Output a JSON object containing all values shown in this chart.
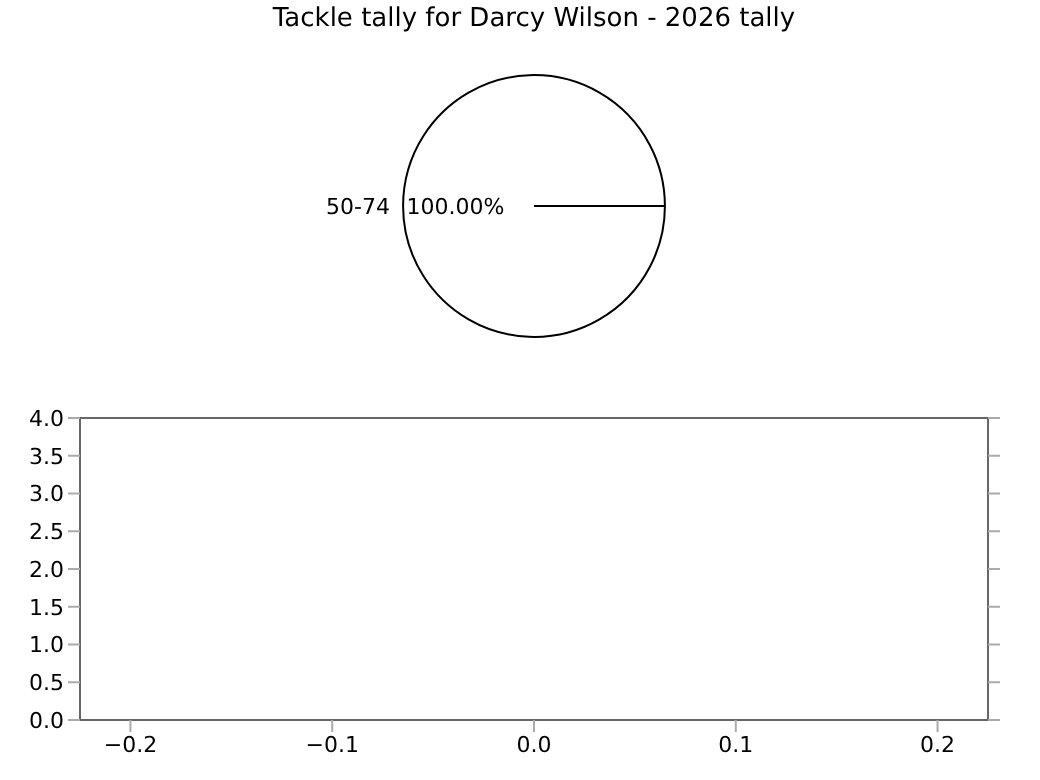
{
  "chart_data": [
    {
      "type": "pie",
      "title": "Tackle tally for Darcy Wilson - 2026 tally",
      "categories": [
        "50-74"
      ],
      "values": [
        100
      ],
      "colors": [
        "#ffffff"
      ],
      "value_labels": [
        "100.00%"
      ]
    },
    {
      "type": "scatter",
      "xlim": [
        -0.225,
        0.225
      ],
      "ylim": [
        0,
        4
      ],
      "xticks": [
        {
          "value": -0.2,
          "label": "−0.2"
        },
        {
          "value": -0.1,
          "label": "−0.1"
        },
        {
          "value": 0,
          "label": "0.0"
        },
        {
          "value": 0.1,
          "label": "0.1"
        },
        {
          "value": 0.2,
          "label": "0.2"
        }
      ],
      "yticks": [
        {
          "value": 0,
          "label": "0.0"
        },
        {
          "value": 0.5,
          "label": "0.5"
        },
        {
          "value": 1,
          "label": "1.0"
        },
        {
          "value": 1.5,
          "label": "1.5"
        },
        {
          "value": 2,
          "label": "2.0"
        },
        {
          "value": 2.5,
          "label": "2.5"
        },
        {
          "value": 3,
          "label": "3.0"
        },
        {
          "value": 3.5,
          "label": "3.5"
        },
        {
          "value": 4,
          "label": "4.0"
        }
      ]
    }
  ]
}
